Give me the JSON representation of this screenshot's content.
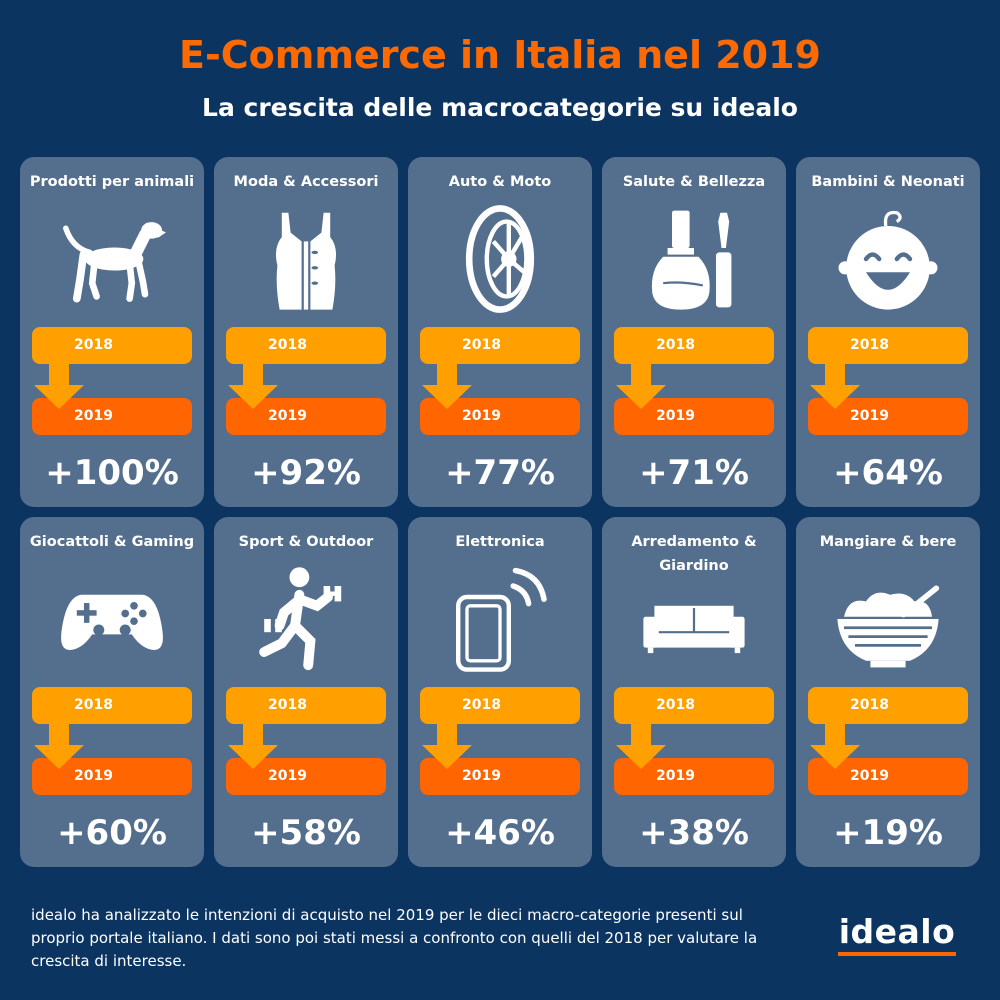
{
  "header": {
    "title": "E-Commerce in Italia nel 2019",
    "subtitle": "La crescita delle macrocategorie su idealo"
  },
  "colors": {
    "background": "#0b3461",
    "card": "#546f8e",
    "accent_orange": "#ff6a00",
    "bar_2018": "#ffa000",
    "bar_2019": "#ff6500"
  },
  "categories": [
    {
      "title": "Prodotti per animali",
      "icon": "dog-icon",
      "year_a": "2018",
      "year_b": "2019",
      "growth": "+100%"
    },
    {
      "title": "Moda & Accessori",
      "icon": "dress-icon",
      "year_a": "2018",
      "year_b": "2019",
      "growth": "+92%"
    },
    {
      "title": "Auto & Moto",
      "icon": "tire-icon",
      "year_a": "2018",
      "year_b": "2019",
      "growth": "+77%"
    },
    {
      "title": "Salute & Bellezza",
      "icon": "nail-polish-icon",
      "year_a": "2018",
      "year_b": "2019",
      "growth": "+71%"
    },
    {
      "title": "Bambini & Neonati",
      "icon": "baby-face-icon",
      "year_a": "2018",
      "year_b": "2019",
      "growth": "+64%"
    },
    {
      "title": "Giocattoli & Gaming",
      "icon": "gamepad-icon",
      "year_a": "2018",
      "year_b": "2019",
      "growth": "+60%"
    },
    {
      "title": "Sport & Outdoor",
      "icon": "runner-icon",
      "year_a": "2018",
      "year_b": "2019",
      "growth": "+58%"
    },
    {
      "title": "Elettronica",
      "icon": "smartphone-icon",
      "year_a": "2018",
      "year_b": "2019",
      "growth": "+46%"
    },
    {
      "title": "Arredamento & Giardino",
      "icon": "sofa-icon",
      "year_a": "2018",
      "year_b": "2019",
      "growth": "+38%"
    },
    {
      "title": "Mangiare & bere",
      "icon": "food-bowl-icon",
      "year_a": "2018",
      "year_b": "2019",
      "growth": "+19%"
    }
  ],
  "footer": {
    "text": "idealo ha analizzato le intenzioni di acquisto nel 2019 per le dieci macro-categorie presenti sul proprio portale italiano. I dati sono poi stati messi a confronto con quelli del 2018 per valutare la crescita di interesse.",
    "logo": "idealo"
  }
}
